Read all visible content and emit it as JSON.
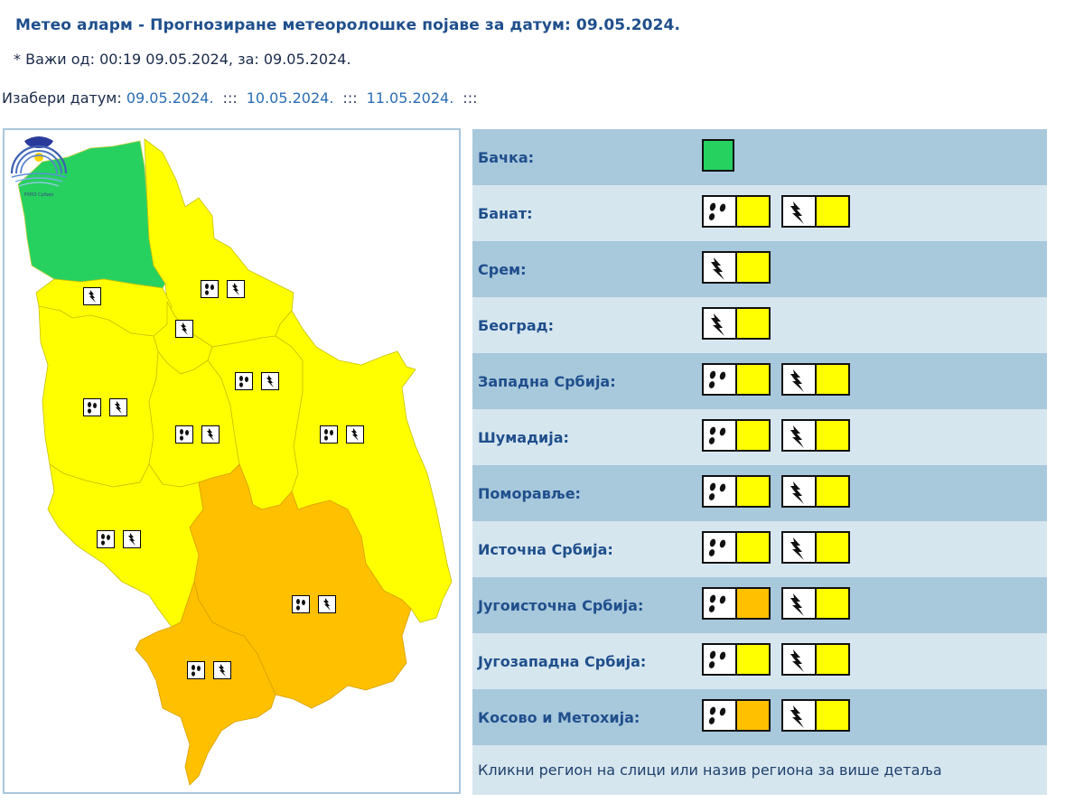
{
  "header": {
    "title": "Метео аларм - Прогнозиране метеоролошке појаве за датум:",
    "title_date": "09.05.2024.",
    "valid_text": "* Важи од: 00:19 09.05.2024, за: 09.05.2024.",
    "date_select_label": "Изабери датум:",
    "dates": [
      "09.05.2024.",
      "10.05.2024.",
      "11.05.2024."
    ],
    "separator": ":::"
  },
  "colors": {
    "green": "#27d160",
    "yellow": "#ffff00",
    "orange": "#ffc000",
    "header_blue": "#1f4f8c",
    "row_dark": "#a8c8dc",
    "row_light": "#d6e6ef"
  },
  "icons": {
    "rain": "rain-icon",
    "thunder": "thunderstorm-icon"
  },
  "regions": [
    {
      "name": "Бачка:",
      "level": "green",
      "warnings": []
    },
    {
      "name": "Банат:",
      "warnings": [
        {
          "type": "rain",
          "level": "yellow"
        },
        {
          "type": "thunder",
          "level": "yellow"
        }
      ]
    },
    {
      "name": "Срем:",
      "warnings": [
        {
          "type": "thunder",
          "level": "yellow"
        }
      ]
    },
    {
      "name": "Београд:",
      "warnings": [
        {
          "type": "thunder",
          "level": "yellow"
        }
      ]
    },
    {
      "name": "Западна Србија:",
      "warnings": [
        {
          "type": "rain",
          "level": "yellow"
        },
        {
          "type": "thunder",
          "level": "yellow"
        }
      ]
    },
    {
      "name": "Шумадија:",
      "warnings": [
        {
          "type": "rain",
          "level": "yellow"
        },
        {
          "type": "thunder",
          "level": "yellow"
        }
      ]
    },
    {
      "name": "Поморавље:",
      "warnings": [
        {
          "type": "rain",
          "level": "yellow"
        },
        {
          "type": "thunder",
          "level": "yellow"
        }
      ]
    },
    {
      "name": "Источна Србија:",
      "warnings": [
        {
          "type": "rain",
          "level": "yellow"
        },
        {
          "type": "thunder",
          "level": "yellow"
        }
      ]
    },
    {
      "name": "Југоисточна Србија:",
      "warnings": [
        {
          "type": "rain",
          "level": "orange"
        },
        {
          "type": "thunder",
          "level": "yellow"
        }
      ]
    },
    {
      "name": "Југозападна Србија:",
      "warnings": [
        {
          "type": "rain",
          "level": "yellow"
        },
        {
          "type": "thunder",
          "level": "yellow"
        }
      ]
    },
    {
      "name": "Косово и Метохија:",
      "warnings": [
        {
          "type": "rain",
          "level": "orange"
        },
        {
          "type": "thunder",
          "level": "yellow"
        }
      ]
    }
  ],
  "footer_note": "Кликни регион на слици или назив региона за више детаља",
  "map": {
    "logo_label": "РХМЗ Србије"
  }
}
